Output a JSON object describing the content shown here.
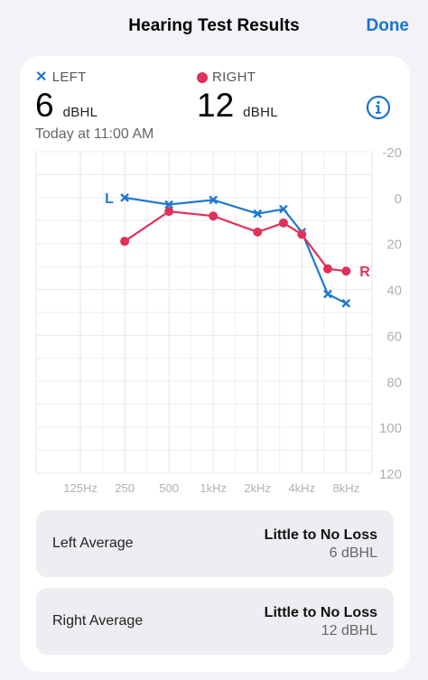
{
  "nav": {
    "title": "Hearing Test Results",
    "done_label": "Done"
  },
  "summary": {
    "left_legend": "LEFT",
    "right_legend": "RIGHT",
    "left_value": "6",
    "right_value": "12",
    "unit": "dBHL",
    "timestamp": "Today at 11:00 AM"
  },
  "colors": {
    "left": "#1f78d1",
    "right": "#e0315a",
    "accent": "#1a73d0"
  },
  "icons": {
    "info": "info-circle-icon"
  },
  "chart_data": {
    "type": "line",
    "categories": [
      "125Hz",
      "250",
      "500",
      "1kHz",
      "2kHz",
      "4kHz",
      "8kHz"
    ],
    "ylim": [
      -20,
      120
    ],
    "y_inverted": true,
    "y_ticks": [
      -20,
      0,
      20,
      40,
      60,
      80,
      100,
      120
    ],
    "grid": true,
    "series": [
      {
        "name": "L",
        "marker": "x",
        "color": "#1f78d1",
        "points": [
          [
            250,
            0
          ],
          [
            500,
            3
          ],
          [
            1000,
            1
          ],
          [
            2000,
            7
          ],
          [
            3000,
            5
          ],
          [
            4000,
            15
          ],
          [
            6000,
            42
          ],
          [
            8000,
            46
          ]
        ]
      },
      {
        "name": "R",
        "marker": "dot",
        "color": "#e0315a",
        "points": [
          [
            250,
            19
          ],
          [
            500,
            6
          ],
          [
            1000,
            8
          ],
          [
            2000,
            15
          ],
          [
            3000,
            11
          ],
          [
            4000,
            16
          ],
          [
            6000,
            31
          ],
          [
            8000,
            32
          ]
        ]
      }
    ]
  },
  "averages": [
    {
      "label": "Left Average",
      "title": "Little to No Loss",
      "value": "6 dBHL"
    },
    {
      "label": "Right Average",
      "title": "Little to No Loss",
      "value": "12 dBHL"
    }
  ]
}
